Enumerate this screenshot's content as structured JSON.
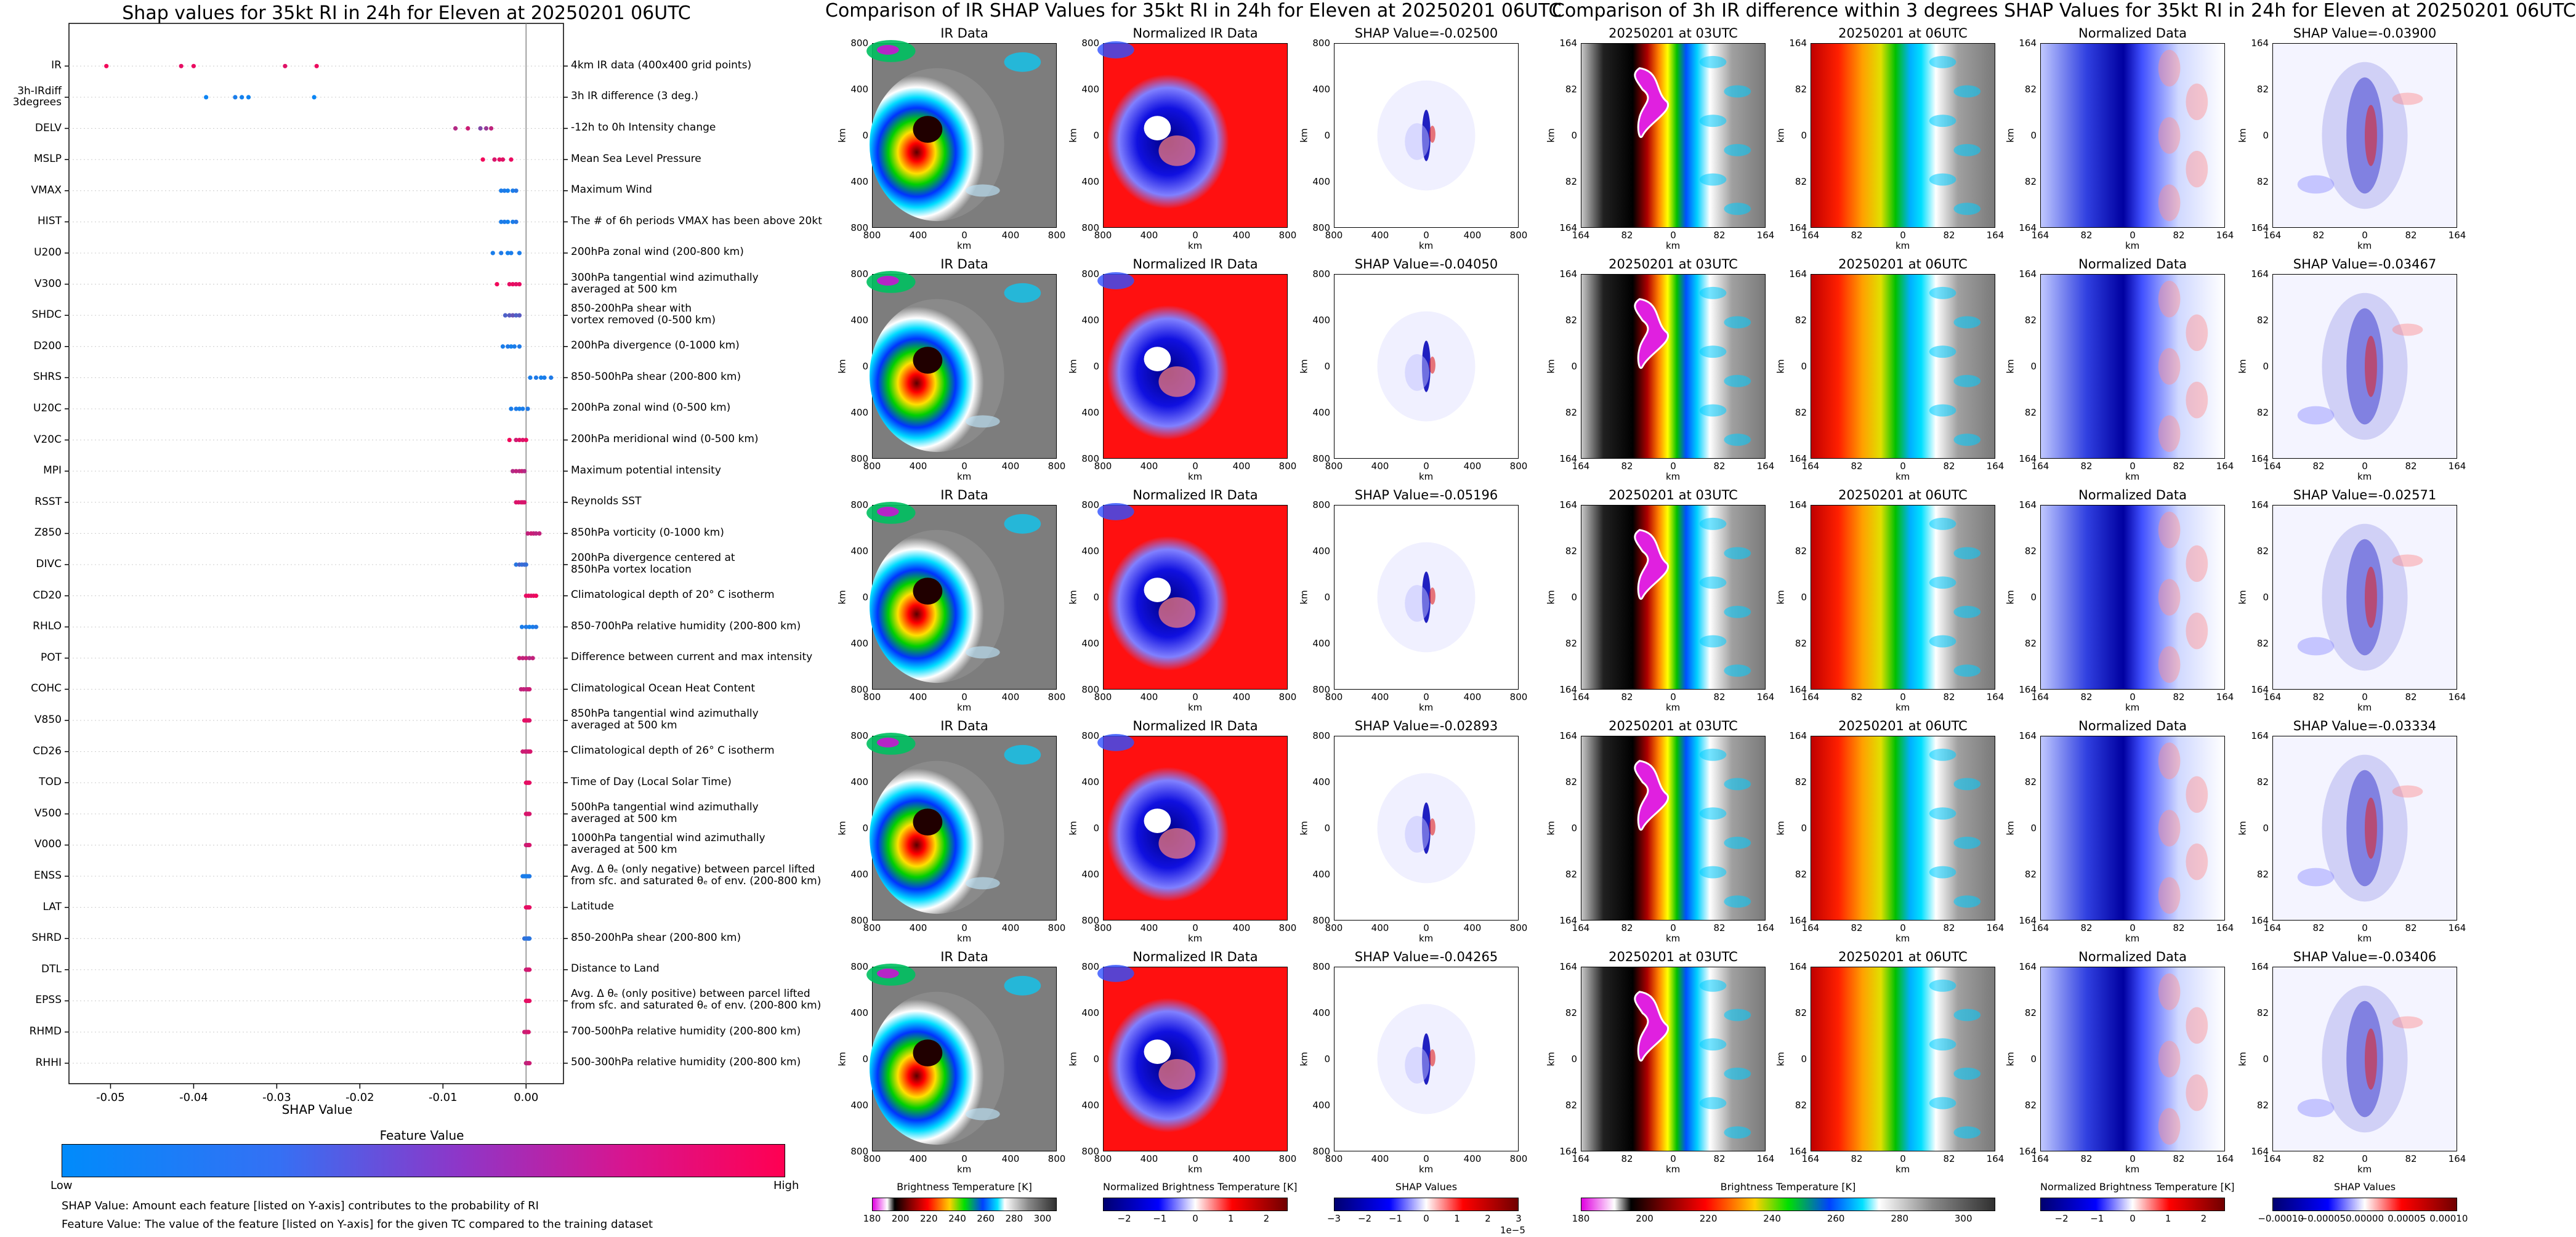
{
  "left": {
    "title": "Shap values for 35kt RI in 24h for Eleven at 20250201 06UTC",
    "xlabel": "SHAP Value",
    "colorbar_title": "Feature Value",
    "low_label": "Low",
    "high_label": "High",
    "note1": "SHAP Value: Amount each feature [listed on Y-axis] contributes to the probability of RI",
    "note2": "Feature Value: The value of the feature [listed on Y-axis] for the given TC compared to the training dataset"
  },
  "chart_data": {
    "type": "scatter",
    "title": "Shap values for 35kt RI in 24h for Eleven at 20250201 06UTC",
    "xlabel": "SHAP Value",
    "xlim": [
      -0.055,
      0.0045
    ],
    "xticks": [
      "-0.05",
      "-0.04",
      "-0.03",
      "-0.02",
      "-0.01",
      "0.00"
    ],
    "xtick_values": [
      -0.05,
      -0.04,
      -0.03,
      -0.02,
      -0.01,
      0.0
    ],
    "colors": {
      "low": "#008bfb",
      "high": "#ff0052"
    },
    "features": [
      {
        "name": "IR",
        "desc": "4km IR data (400x400 grid points)",
        "points": [
          [
            -0.0505,
            0.95
          ],
          [
            -0.0415,
            0.9
          ],
          [
            -0.04,
            0.92
          ],
          [
            -0.029,
            0.88
          ],
          [
            -0.0252,
            0.93
          ]
        ]
      },
      {
        "name": "3h-IRdiff\n3degrees",
        "desc": "3h IR difference (3 deg.)",
        "points": [
          [
            -0.0385,
            0.05
          ],
          [
            -0.035,
            0.1
          ],
          [
            -0.0342,
            0.08
          ],
          [
            -0.0334,
            0.06
          ],
          [
            -0.0255,
            0.04
          ]
        ]
      },
      {
        "name": "DELV",
        "desc": "-12h to 0h Intensity change",
        "points": [
          [
            -0.0085,
            0.7
          ],
          [
            -0.007,
            0.8
          ],
          [
            -0.0055,
            0.5
          ],
          [
            -0.0048,
            0.6
          ],
          [
            -0.0042,
            0.75
          ]
        ]
      },
      {
        "name": "MSLP",
        "desc": "Mean Sea Level Pressure",
        "points": [
          [
            -0.0052,
            0.95
          ],
          [
            -0.0038,
            0.85
          ],
          [
            -0.0032,
            0.9
          ],
          [
            -0.0028,
            0.88
          ],
          [
            -0.0018,
            0.92
          ]
        ]
      },
      {
        "name": "VMAX",
        "desc": "Maximum Wind",
        "points": [
          [
            -0.003,
            0.1
          ],
          [
            -0.0026,
            0.12
          ],
          [
            -0.0022,
            0.08
          ],
          [
            -0.0016,
            0.1
          ],
          [
            -0.0012,
            0.15
          ]
        ]
      },
      {
        "name": "HIST",
        "desc": "The # of 6h periods VMAX has been above 20kt",
        "points": [
          [
            -0.003,
            0.1
          ],
          [
            -0.0026,
            0.12
          ],
          [
            -0.0022,
            0.08
          ],
          [
            -0.0016,
            0.1
          ],
          [
            -0.0012,
            0.15
          ]
        ]
      },
      {
        "name": "U200",
        "desc": "200hPa zonal wind (200-800 km)",
        "points": [
          [
            -0.004,
            0.1
          ],
          [
            -0.003,
            0.12
          ],
          [
            -0.0022,
            0.08
          ],
          [
            -0.0018,
            0.1
          ],
          [
            -0.0008,
            0.1
          ]
        ]
      },
      {
        "name": "V300",
        "desc": "300hPa tangential wind azimuthally\naveraged at 500 km",
        "points": [
          [
            -0.0035,
            0.95
          ],
          [
            -0.002,
            0.9
          ],
          [
            -0.0016,
            0.92
          ],
          [
            -0.0012,
            0.88
          ],
          [
            -0.0008,
            0.9
          ]
        ]
      },
      {
        "name": "SHDC",
        "desc": "850-200hPa shear with\nvortex removed (0-500 km)",
        "points": [
          [
            -0.0025,
            0.3
          ],
          [
            -0.002,
            0.35
          ],
          [
            -0.0016,
            0.4
          ],
          [
            -0.0012,
            0.3
          ],
          [
            -0.0008,
            0.35
          ]
        ]
      },
      {
        "name": "D200",
        "desc": "200hPa divergence (0-1000 km)",
        "points": [
          [
            -0.0028,
            0.1
          ],
          [
            -0.0022,
            0.12
          ],
          [
            -0.0018,
            0.08
          ],
          [
            -0.0014,
            0.1
          ],
          [
            -0.0008,
            0.12
          ]
        ]
      },
      {
        "name": "SHRS",
        "desc": "850-500hPa shear (200-800 km)",
        "points": [
          [
            0.0005,
            0.1
          ],
          [
            0.0012,
            0.12
          ],
          [
            0.0018,
            0.08
          ],
          [
            0.0022,
            0.1
          ],
          [
            0.003,
            0.12
          ]
        ]
      },
      {
        "name": "U20C",
        "desc": "200hPa zonal wind (0-500 km)",
        "points": [
          [
            -0.0018,
            0.1
          ],
          [
            -0.0012,
            0.12
          ],
          [
            -0.0008,
            0.08
          ],
          [
            -0.0004,
            0.1
          ],
          [
            0.0002,
            0.12
          ]
        ]
      },
      {
        "name": "V20C",
        "desc": "200hPa meridional wind (0-500 km)",
        "points": [
          [
            -0.002,
            0.95
          ],
          [
            -0.0012,
            0.8
          ],
          [
            -0.0008,
            0.9
          ],
          [
            -0.0004,
            0.85
          ],
          [
            0.0,
            0.92
          ]
        ]
      },
      {
        "name": "MPI",
        "desc": "Maximum potential intensity",
        "points": [
          [
            -0.0016,
            0.7
          ],
          [
            -0.0012,
            0.75
          ],
          [
            -0.0008,
            0.72
          ],
          [
            -0.0005,
            0.78
          ],
          [
            -0.0002,
            0.7
          ]
        ]
      },
      {
        "name": "RSST",
        "desc": "Reynolds SST",
        "points": [
          [
            -0.0012,
            0.85
          ],
          [
            -0.0009,
            0.88
          ],
          [
            -0.0006,
            0.82
          ],
          [
            -0.0004,
            0.86
          ],
          [
            -0.0002,
            0.84
          ]
        ]
      },
      {
        "name": "Z850",
        "desc": "850hPa vorticity (0-1000 km)",
        "points": [
          [
            0.0002,
            0.75
          ],
          [
            0.0006,
            0.8
          ],
          [
            0.0009,
            0.78
          ],
          [
            0.0012,
            0.72
          ],
          [
            0.0016,
            0.76
          ]
        ]
      },
      {
        "name": "DIVC",
        "desc": "200hPa divergence centered at\n850hPa vortex location",
        "points": [
          [
            -0.0012,
            0.15
          ],
          [
            -0.0008,
            0.3
          ],
          [
            -0.0005,
            0.2
          ],
          [
            -0.0002,
            0.25
          ],
          [
            0.0,
            0.2
          ]
        ]
      },
      {
        "name": "CD20",
        "desc": "Climatological depth of 20° C isotherm",
        "points": [
          [
            0.0,
            0.9
          ],
          [
            0.0003,
            0.92
          ],
          [
            0.0006,
            0.88
          ],
          [
            0.0009,
            0.9
          ],
          [
            0.0012,
            0.94
          ]
        ]
      },
      {
        "name": "RHLO",
        "desc": "850-700hPa relative humidity (200-800 km)",
        "points": [
          [
            -0.0005,
            0.1
          ],
          [
            0.0,
            0.12
          ],
          [
            0.0004,
            0.08
          ],
          [
            0.0008,
            0.1
          ],
          [
            0.0012,
            0.14
          ]
        ]
      },
      {
        "name": "POT",
        "desc": "Difference between current and max intensity",
        "points": [
          [
            -0.0008,
            0.8
          ],
          [
            -0.0004,
            0.75
          ],
          [
            0.0,
            0.78
          ],
          [
            0.0004,
            0.7
          ],
          [
            0.0008,
            0.76
          ]
        ]
      },
      {
        "name": "COHC",
        "desc": "Climatological Ocean Heat Content",
        "points": [
          [
            -0.0006,
            0.75
          ],
          [
            -0.0003,
            0.78
          ],
          [
            0.0,
            0.72
          ],
          [
            0.0002,
            0.76
          ],
          [
            0.0004,
            0.8
          ]
        ]
      },
      {
        "name": "V850",
        "desc": "850hPa tangential wind azimuthally\naveraged at 500 km",
        "points": [
          [
            -0.0002,
            0.9
          ],
          [
            0.0,
            0.88
          ],
          [
            0.0002,
            0.92
          ],
          [
            0.0003,
            0.9
          ],
          [
            0.0004,
            0.86
          ]
        ]
      },
      {
        "name": "CD26",
        "desc": "Climatological depth of 26° C isotherm",
        "points": [
          [
            -0.0004,
            0.8
          ],
          [
            -0.0001,
            0.82
          ],
          [
            0.0001,
            0.78
          ],
          [
            0.0003,
            0.8
          ],
          [
            0.0005,
            0.84
          ]
        ]
      },
      {
        "name": "TOD",
        "desc": "Time of Day (Local Solar Time)",
        "points": [
          [
            0.0,
            0.9
          ],
          [
            0.0001,
            0.92
          ],
          [
            0.0002,
            0.88
          ],
          [
            0.0003,
            0.9
          ],
          [
            0.0004,
            0.9
          ]
        ]
      },
      {
        "name": "V500",
        "desc": "500hPa tangential wind azimuthally\naveraged at 500 km",
        "points": [
          [
            0.0,
            0.85
          ],
          [
            0.0001,
            0.88
          ],
          [
            0.0002,
            0.82
          ],
          [
            0.0003,
            0.86
          ],
          [
            0.0004,
            0.84
          ]
        ]
      },
      {
        "name": "V000",
        "desc": "1000hPa tangential wind azimuthally\naveraged at 500 km",
        "points": [
          [
            0.0,
            0.8
          ],
          [
            0.0001,
            0.82
          ],
          [
            0.0002,
            0.78
          ],
          [
            0.0003,
            0.8
          ],
          [
            0.0004,
            0.84
          ]
        ]
      },
      {
        "name": "ENSS",
        "desc": "Avg. Δ θₑ (only negative) between parcel lifted\nfrom sfc. and saturated θₑ of env. (200-800 km)",
        "points": [
          [
            -0.0004,
            0.1
          ],
          [
            -0.0002,
            0.12
          ],
          [
            0.0,
            0.08
          ],
          [
            0.0002,
            0.1
          ],
          [
            0.0004,
            0.12
          ]
        ]
      },
      {
        "name": "LAT",
        "desc": "Latitude",
        "points": [
          [
            0.0,
            0.9
          ],
          [
            0.0001,
            0.92
          ],
          [
            0.0002,
            0.88
          ],
          [
            0.0003,
            0.9
          ],
          [
            0.0004,
            0.9
          ]
        ]
      },
      {
        "name": "SHRD",
        "desc": "850-200hPa shear (200-800 km)",
        "points": [
          [
            -0.0002,
            0.2
          ],
          [
            0.0,
            0.15
          ],
          [
            0.0002,
            0.18
          ],
          [
            0.0003,
            0.2
          ],
          [
            0.0004,
            0.16
          ]
        ]
      },
      {
        "name": "DTL",
        "desc": "Distance to Land",
        "points": [
          [
            0.0,
            0.8
          ],
          [
            0.0001,
            0.82
          ],
          [
            0.0002,
            0.78
          ],
          [
            0.0003,
            0.8
          ],
          [
            0.0004,
            0.84
          ]
        ]
      },
      {
        "name": "EPSS",
        "desc": "Avg. Δ θₑ (only positive) between parcel lifted\nfrom sfc. and saturated θₑ of env. (200-800 km)",
        "points": [
          [
            0.0,
            0.9
          ],
          [
            0.0001,
            0.92
          ],
          [
            0.0002,
            0.88
          ],
          [
            0.0003,
            0.9
          ],
          [
            0.0004,
            0.9
          ]
        ]
      },
      {
        "name": "RHMD",
        "desc": "700-500hPa relative humidity (200-800 km)",
        "points": [
          [
            -0.0002,
            0.8
          ],
          [
            0.0,
            0.82
          ],
          [
            0.0001,
            0.78
          ],
          [
            0.0002,
            0.8
          ],
          [
            0.0003,
            0.84
          ]
        ]
      },
      {
        "name": "RHHI",
        "desc": "500-300hPa relative humidity (200-800 km)",
        "points": [
          [
            0.0,
            0.75
          ],
          [
            0.0001,
            0.78
          ],
          [
            0.0002,
            0.72
          ],
          [
            0.0003,
            0.76
          ],
          [
            0.0004,
            0.8
          ]
        ]
      }
    ]
  },
  "ir_section": {
    "title": "Comparison of IR SHAP Values for 35kt RI in 24h for Eleven at 20250201 06UTC",
    "col_titles": [
      "IR Data",
      "Normalized IR Data"
    ],
    "shap_titles": [
      "SHAP Value=-0.02500",
      "SHAP Value=-0.04050",
      "SHAP Value=-0.05196",
      "SHAP Value=-0.02893",
      "SHAP Value=-0.04265"
    ],
    "axis_unit": "km",
    "yticks": [
      "800",
      "400",
      "0",
      "400",
      "800"
    ],
    "xticks": [
      "800",
      "400",
      "0",
      "400",
      "800"
    ],
    "colorbars": [
      {
        "label": "Brightness Temperature [K]",
        "ticks": [
          "180",
          "200",
          "220",
          "240",
          "260",
          "280",
          "300"
        ],
        "vmin": 180,
        "vmax": 310,
        "tick_values": [
          180,
          200,
          220,
          240,
          260,
          280,
          300
        ]
      },
      {
        "label": "Normalized Brightness Temperature [K]",
        "ticks": [
          "−2",
          "−1",
          "0",
          "1",
          "2"
        ],
        "vmin": -2.6,
        "vmax": 2.6,
        "tick_values": [
          -2,
          -1,
          0,
          1,
          2
        ]
      },
      {
        "label": "SHAP Values",
        "ticks": [
          "−3",
          "−2",
          "−1",
          "0",
          "1",
          "2",
          "3"
        ],
        "vmin": -3,
        "vmax": 3,
        "tick_values": [
          -3,
          -2,
          -1,
          0,
          1,
          2,
          3
        ],
        "offset": "1e−5"
      }
    ]
  },
  "diff_section": {
    "title": "Comparison of 3h IR difference within 3 degrees SHAP Values for 35kt RI in 24h for Eleven at 20250201 06UTC",
    "col_titles": [
      "20250201 at 03UTC",
      "20250201 at 06UTC",
      "Normalized Data"
    ],
    "shap_titles": [
      "SHAP Value=-0.03900",
      "SHAP Value=-0.03467",
      "SHAP Value=-0.02571",
      "SHAP Value=-0.03334",
      "SHAP Value=-0.03406"
    ],
    "axis_unit": "km",
    "yticks": [
      "164",
      "82",
      "0",
      "82",
      "164"
    ],
    "xticks": [
      "164",
      "82",
      "0",
      "82",
      "164"
    ],
    "colorbars": [
      {
        "label": "Brightness Temperature [K]",
        "ticks": [
          "180",
          "200",
          "220",
          "240",
          "260",
          "280",
          "300"
        ],
        "vmin": 180,
        "vmax": 310,
        "tick_values": [
          180,
          200,
          220,
          240,
          260,
          280,
          300
        ]
      },
      {
        "label": "Normalized Brightness Temperature [K]",
        "ticks": [
          "−2",
          "−1",
          "0",
          "1",
          "2"
        ],
        "vmin": -2.6,
        "vmax": 2.6,
        "tick_values": [
          -2,
          -1,
          0,
          1,
          2
        ]
      },
      {
        "label": "SHAP Values",
        "ticks": [
          "−0.00010",
          "−0.00005",
          "0.00000",
          "0.00005",
          "0.00010"
        ],
        "vmin": -0.00011,
        "vmax": 0.00011,
        "tick_values": [
          -0.0001,
          -5e-05,
          0,
          5e-05,
          0.0001
        ]
      }
    ]
  }
}
